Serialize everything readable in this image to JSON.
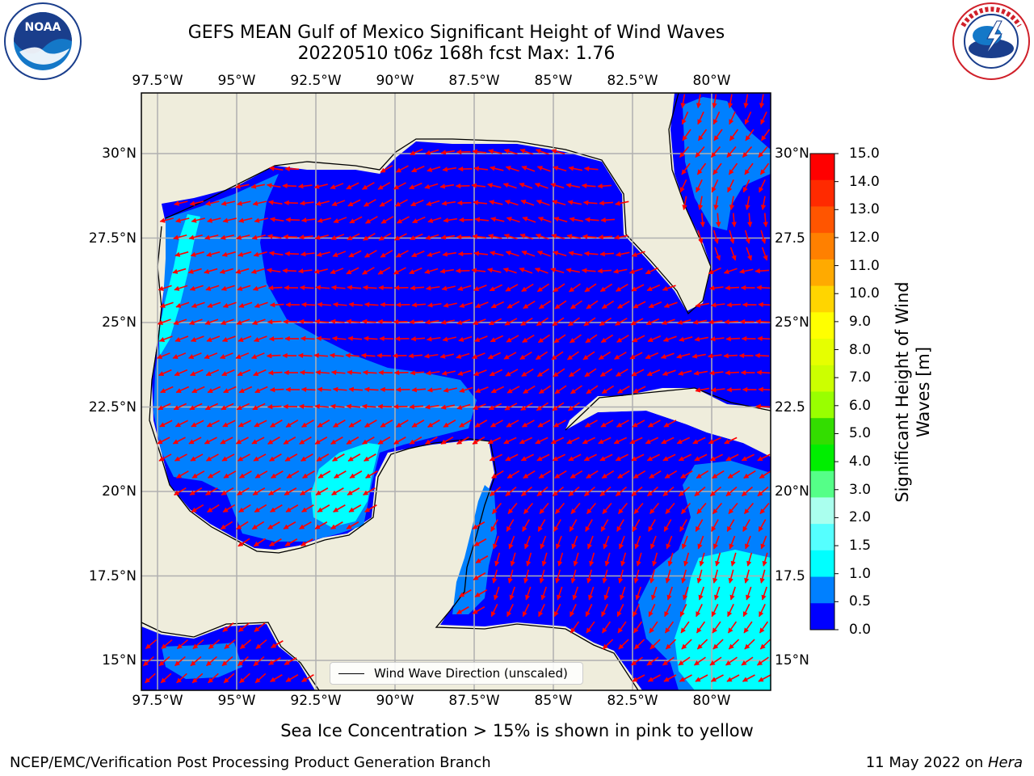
{
  "header": {
    "title_line1": "GEFS MEAN Gulf of Mexico Significant Height of Wind Waves",
    "title_line2": "20220510 t06z 168h fcst   Max: 1.76"
  },
  "logos": {
    "noaa": {
      "text": "NOAA",
      "ring_text": "NATIONAL OCEANIC AND ATMOSPHERIC ADMINISTRATION · U.S. DEPARTMENT OF COMMERCE"
    },
    "nws": {
      "ring_text": "NATIONAL WEATHER SERVICE"
    }
  },
  "axes": {
    "lon_labels": [
      "97.5°W",
      "95°W",
      "92.5°W",
      "90°W",
      "87.5°W",
      "85°W",
      "82.5°W",
      "80°W"
    ],
    "lat_labels_left": [
      "30°N",
      "27.5°N",
      "25°N",
      "22.5°N",
      "20°N",
      "17.5°N",
      "15°N"
    ],
    "lat_labels_right": [
      "30°N",
      "27.5",
      "25°N",
      "22.5",
      "20°N",
      "17.5",
      "15°N"
    ]
  },
  "colorbar": {
    "label": "Significant Height of Wind Waves [m]",
    "ticks": [
      "15.0",
      "14.0",
      "13.0",
      "12.0",
      "11.0",
      "10.0",
      "9.0",
      "8.0",
      "7.0",
      "6.0",
      "5.0",
      "4.0",
      "3.0",
      "2.0",
      "1.5",
      "1.0",
      "0.5",
      "0.0"
    ],
    "colors": [
      "#ff0000",
      "#ff2a00",
      "#ff5500",
      "#ff8000",
      "#ffaa00",
      "#ffd500",
      "#ffff00",
      "#e6ff00",
      "#ccff00",
      "#99ff00",
      "#33dd00",
      "#00ee00",
      "#55ff88",
      "#aaffee",
      "#55ffff",
      "#00ffff",
      "#0080ff",
      "#0000ff"
    ]
  },
  "legend": {
    "label": "Wind Wave Direction (unscaled)"
  },
  "notes": {
    "ice": "Sea Ice Concentration > 15% is shown in pink to yellow",
    "footer_left": "NCEP/EMC/Verification Post Processing Product Generation Branch",
    "footer_date": "11 May 2022 on ",
    "footer_machine": "Hera"
  },
  "map": {
    "land_color": "#efeddc",
    "grid_color": "#b0b0b0",
    "arrow_color": "#ff0000"
  }
}
